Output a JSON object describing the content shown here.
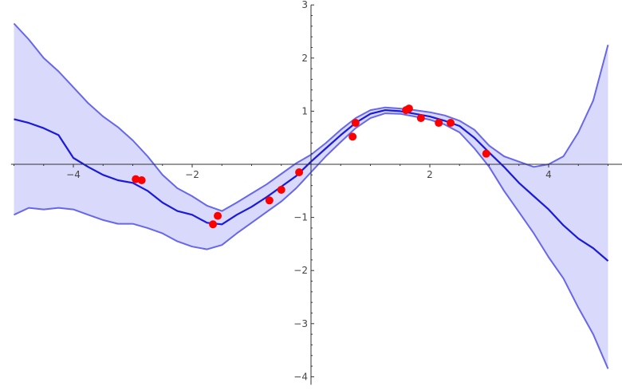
{
  "chart_data": {
    "type": "line",
    "title": "",
    "xlabel": "",
    "ylabel": "",
    "xlim": [
      -5.05,
      5.0
    ],
    "ylim": [
      -4.15,
      3.0
    ],
    "grid": false,
    "x_ticks": [
      -4,
      -2,
      2,
      4
    ],
    "x_tick_labels": [
      "−4",
      "−2",
      "2",
      "4"
    ],
    "y_ticks": [
      -4,
      -3,
      -2,
      -1,
      1,
      2,
      3
    ],
    "y_tick_labels": [
      "−4",
      "−3",
      "−2",
      "−1",
      "1",
      "2",
      "3"
    ],
    "x": [
      -5.0,
      -4.75,
      -4.5,
      -4.25,
      -4.0,
      -3.75,
      -3.5,
      -3.25,
      -3.0,
      -2.75,
      -2.5,
      -2.25,
      -2.0,
      -1.75,
      -1.5,
      -1.25,
      -1.0,
      -0.75,
      -0.5,
      -0.25,
      0.0,
      0.25,
      0.5,
      0.75,
      1.0,
      1.25,
      1.5,
      1.75,
      2.0,
      2.25,
      2.5,
      2.75,
      3.0,
      3.25,
      3.5,
      3.75,
      4.0,
      4.25,
      4.5,
      4.75,
      5.0
    ],
    "series": [
      {
        "role": "mean",
        "color": "#1a1adc",
        "values": [
          0.85,
          0.78,
          0.68,
          0.55,
          0.12,
          -0.05,
          -0.2,
          -0.3,
          -0.35,
          -0.5,
          -0.72,
          -0.88,
          -0.95,
          -1.1,
          -1.13,
          -0.95,
          -0.8,
          -0.62,
          -0.42,
          -0.22,
          0.05,
          0.3,
          0.55,
          0.78,
          0.95,
          1.02,
          1.0,
          0.95,
          0.9,
          0.82,
          0.72,
          0.5,
          0.22,
          -0.05,
          -0.35,
          -0.6,
          -0.85,
          -1.15,
          -1.4,
          -1.58,
          -1.82
        ]
      },
      {
        "role": "upper",
        "color": "#6666ee",
        "values": [
          2.65,
          2.35,
          2.0,
          1.75,
          1.45,
          1.15,
          0.9,
          0.7,
          0.45,
          0.15,
          -0.2,
          -0.45,
          -0.6,
          -0.78,
          -0.88,
          -0.72,
          -0.55,
          -0.38,
          -0.18,
          0.02,
          0.18,
          0.4,
          0.65,
          0.87,
          1.02,
          1.07,
          1.05,
          1.02,
          0.98,
          0.92,
          0.82,
          0.65,
          0.35,
          0.15,
          0.05,
          -0.05,
          0.0,
          0.15,
          0.6,
          1.2,
          2.25
        ]
      },
      {
        "role": "lower",
        "color": "#6666ee",
        "values": [
          -0.95,
          -0.82,
          -0.85,
          -0.82,
          -0.85,
          -0.95,
          -1.05,
          -1.12,
          -1.12,
          -1.2,
          -1.3,
          -1.45,
          -1.55,
          -1.6,
          -1.52,
          -1.3,
          -1.1,
          -0.9,
          -0.7,
          -0.45,
          -0.15,
          0.15,
          0.42,
          0.68,
          0.87,
          0.96,
          0.95,
          0.9,
          0.84,
          0.75,
          0.6,
          0.3,
          -0.05,
          -0.5,
          -0.9,
          -1.3,
          -1.75,
          -2.15,
          -2.7,
          -3.2,
          -3.85
        ]
      }
    ],
    "band": {
      "fill": "#d9d9fb",
      "between": [
        "lower",
        "upper"
      ]
    },
    "points": {
      "color": "#ff0000",
      "x": [
        -2.95,
        -2.85,
        -1.65,
        -1.57,
        -0.7,
        -0.5,
        -0.2,
        0.7,
        0.75,
        1.6,
        1.65,
        1.85,
        2.15,
        2.35,
        2.95
      ],
      "y": [
        -0.28,
        -0.3,
        -1.13,
        -0.97,
        -0.68,
        -0.48,
        -0.15,
        0.52,
        0.78,
        1.02,
        1.05,
        0.87,
        0.78,
        0.78,
        0.2
      ]
    }
  }
}
